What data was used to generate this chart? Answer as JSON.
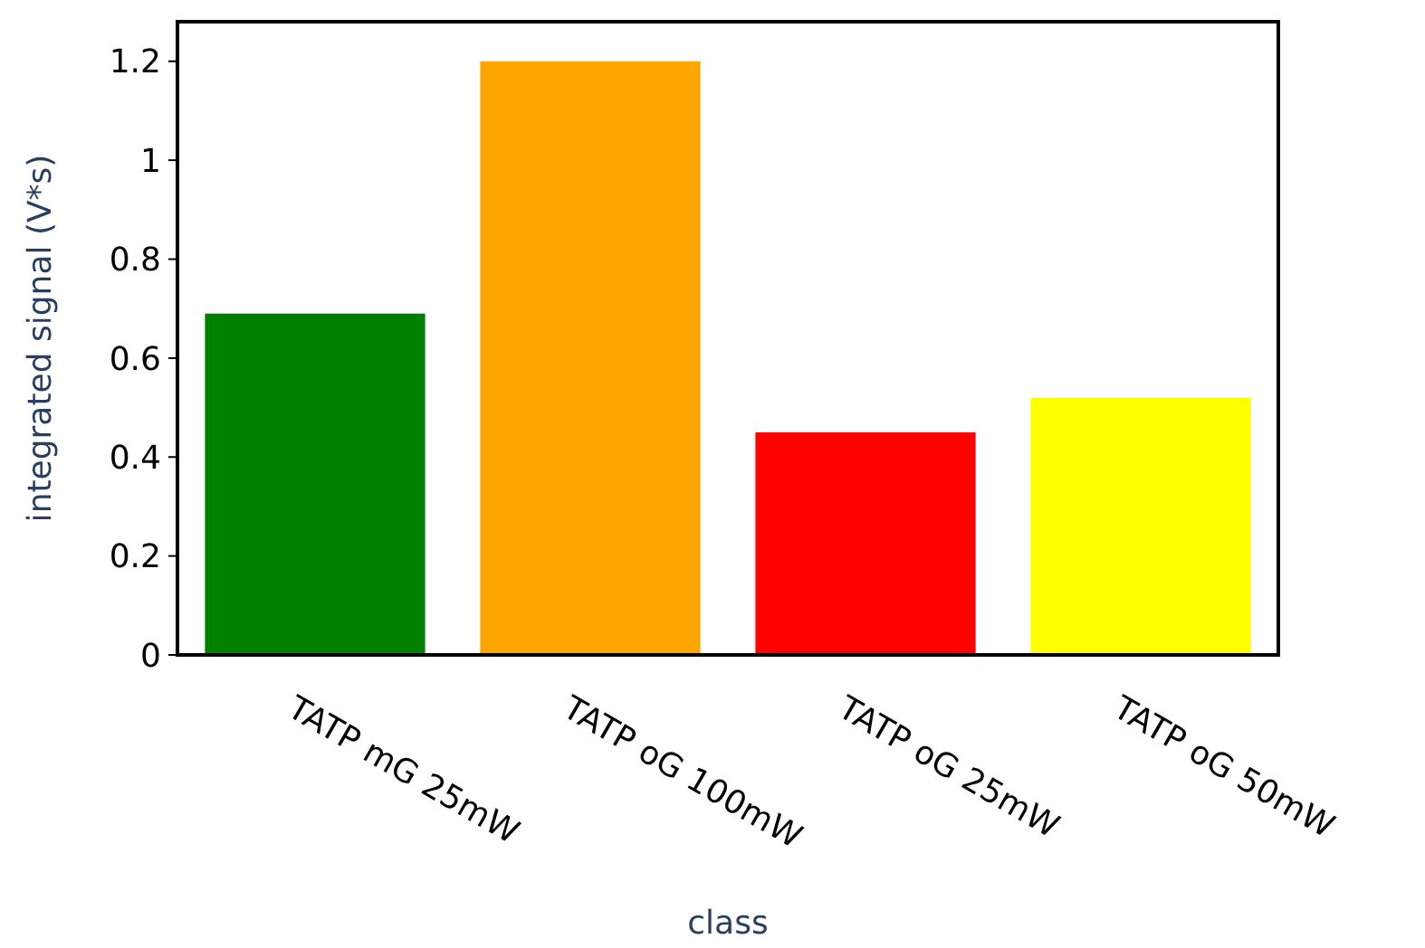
{
  "chart_data": {
    "type": "bar",
    "xlabel": "class",
    "ylabel": "integrated signal (V*s)",
    "categories": [
      "TATP mG 25mW",
      "TATP oG 100mW",
      "TATP oG 25mW",
      "TATP oG 50mW"
    ],
    "values": [
      0.69,
      1.2,
      0.45,
      0.52
    ],
    "colors": [
      "#008000",
      "#ffa500",
      "#ff0000",
      "#ffff00"
    ],
    "ylim": [
      0,
      1.28
    ],
    "yticks": [
      0,
      0.2,
      0.4,
      0.6,
      0.8,
      1,
      1.2
    ],
    "grid": false
  }
}
